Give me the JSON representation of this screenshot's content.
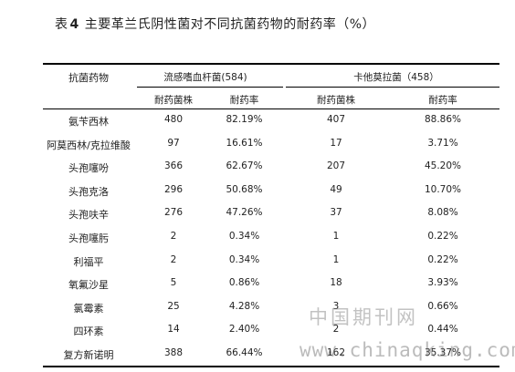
{
  "title": {
    "prefix": "表",
    "number": "4",
    "text": "主要革兰氏阴性菌对不同抗菌药物的耐药率（%）"
  },
  "table": {
    "header_drug": "抗菌药物",
    "group1": "流感嗜血杆菌(584)",
    "group2": "卡他莫拉菌（458）",
    "sub_strains": "耐药菌株",
    "sub_rate": "耐药率",
    "rows": [
      {
        "drug": "氨苄西林",
        "g1_n": "480",
        "g1_r": "82.19%",
        "g2_n": "407",
        "g2_r": "88.86%"
      },
      {
        "drug": "阿莫西林/克拉维酸",
        "g1_n": "97",
        "g1_r": "16.61%",
        "g2_n": "17",
        "g2_r": "3.71%"
      },
      {
        "drug": "头孢噻吩",
        "g1_n": "366",
        "g1_r": "62.67%",
        "g2_n": "207",
        "g2_r": "45.20%"
      },
      {
        "drug": "头孢克洛",
        "g1_n": "296",
        "g1_r": "50.68%",
        "g2_n": "49",
        "g2_r": "10.70%"
      },
      {
        "drug": "头孢呋辛",
        "g1_n": "276",
        "g1_r": "47.26%",
        "g2_n": "37",
        "g2_r": "8.08%"
      },
      {
        "drug": "头孢噻肟",
        "g1_n": "2",
        "g1_r": "0.34%",
        "g2_n": "1",
        "g2_r": "0.22%"
      },
      {
        "drug": "利福平",
        "g1_n": "2",
        "g1_r": "0.34%",
        "g2_n": "1",
        "g2_r": "0.22%"
      },
      {
        "drug": "氧氟沙星",
        "g1_n": "5",
        "g1_r": "0.86%",
        "g2_n": "18",
        "g2_r": "3.93%"
      },
      {
        "drug": "氯霉素",
        "g1_n": "25",
        "g1_r": "4.28%",
        "g2_n": "3",
        "g2_r": "0.66%"
      },
      {
        "drug": "四环素",
        "g1_n": "14",
        "g1_r": "2.40%",
        "g2_n": "2",
        "g2_r": "0.44%"
      },
      {
        "drug": "复方新诺明",
        "g1_n": "388",
        "g1_r": "66.44%",
        "g2_n": "162",
        "g2_r": "35.37%"
      }
    ]
  },
  "watermark": {
    "line1": "中国期刊网",
    "line2": "www.chinaqking.com"
  }
}
